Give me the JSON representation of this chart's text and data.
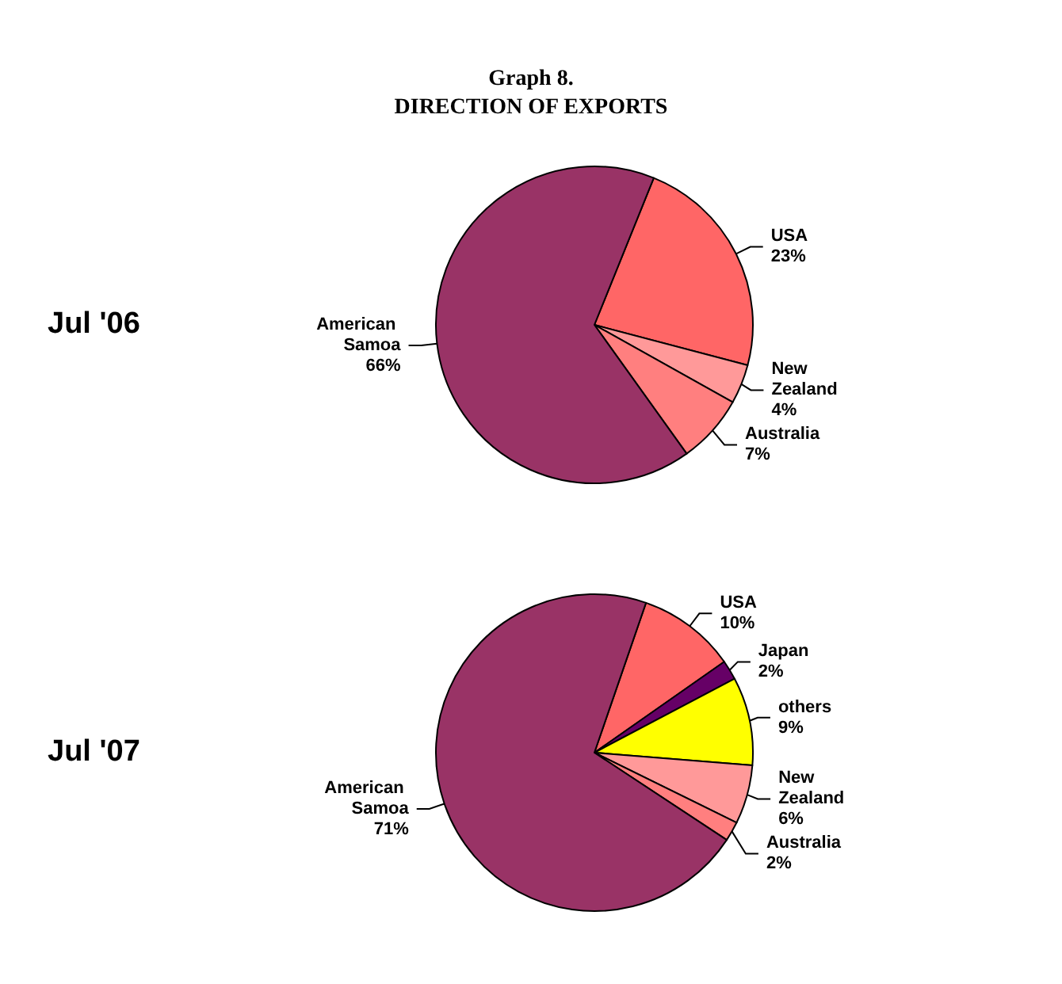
{
  "chart_data": [
    {
      "type": "pie",
      "title": "Graph 8.\nDIRECTION OF EXPORTS",
      "subtitle": "Jul '06",
      "categories": [
        "USA",
        "New Zealand",
        "Australia",
        "American Samoa"
      ],
      "values": [
        23,
        4,
        7,
        66
      ],
      "value_labels": [
        "23%",
        "4%",
        "7%",
        "66%"
      ],
      "colors": [
        "#ff6666",
        "#ff9999",
        "#ff7f7f",
        "#993366"
      ],
      "legend": false
    },
    {
      "type": "pie",
      "subtitle": "Jul '07",
      "categories": [
        "USA",
        "Japan",
        "others",
        "New Zealand",
        "Australia",
        "American Samoa"
      ],
      "values": [
        10,
        2,
        9,
        6,
        2,
        71
      ],
      "value_labels": [
        "10%",
        "2%",
        "9%",
        "6%",
        "2%",
        "71%"
      ],
      "colors": [
        "#ff6666",
        "#660066",
        "#ffff00",
        "#ff9999",
        "#ff7f7f",
        "#993366"
      ],
      "legend": false
    }
  ]
}
